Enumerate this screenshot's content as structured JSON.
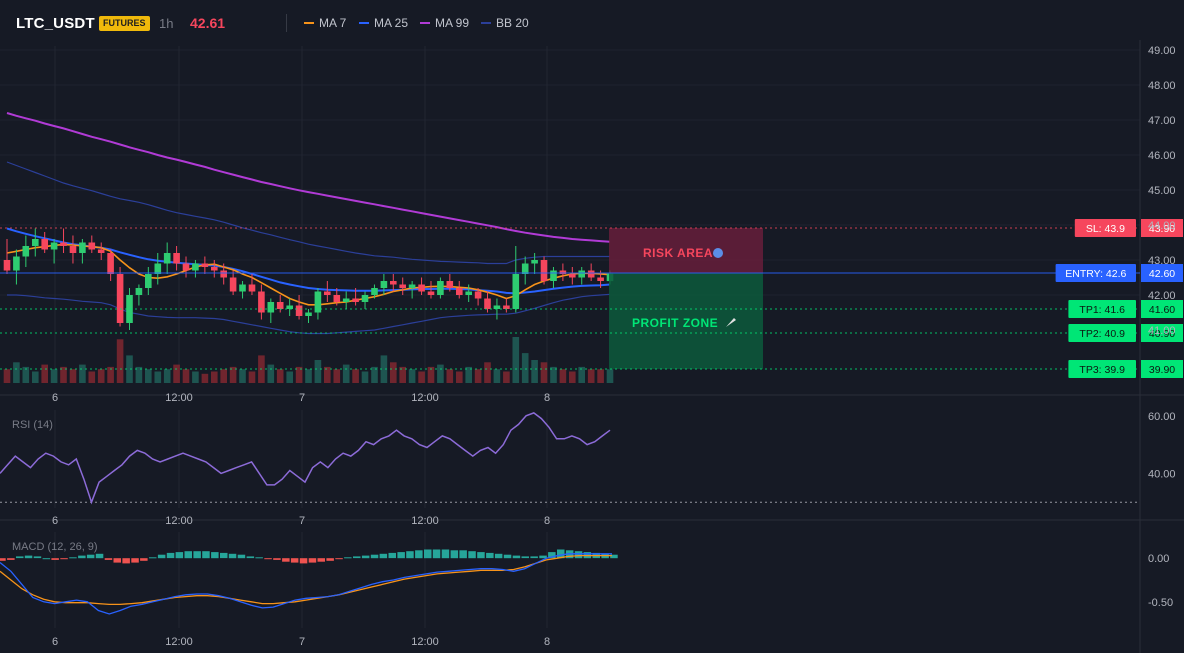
{
  "header": {
    "symbol": "LTC_USDT",
    "badge": "FUTURES",
    "timeframe": "1h",
    "last_price": "42.61",
    "indicators": [
      {
        "label": "MA 7",
        "color": "#f7931a"
      },
      {
        "label": "MA 25",
        "color": "#2962ff"
      },
      {
        "label": "MA 99",
        "color": "#b13bd6"
      },
      {
        "label": "BB 20",
        "color": "#2b3f99"
      }
    ]
  },
  "colors": {
    "up": "#26a69a",
    "up_bright": "#2ecc71",
    "down": "#f6465d",
    "ma7": "#f7931a",
    "ma25": "#2962ff",
    "ma99": "#b13bd6",
    "bb": "#2b3f99",
    "rsi": "#8c6bd8",
    "macd_line": "#2962ff",
    "signal_line": "#f7931a"
  },
  "x_axis_labels": [
    "6",
    "12:00",
    "7",
    "12:00",
    "8"
  ],
  "chart_data": [
    {
      "type": "candlestick",
      "title": "LTC_USDT",
      "ylim": [
        41.4,
        49.2
      ],
      "y_ticks": [
        "49.00",
        "48.00",
        "47.00",
        "46.00",
        "45.00",
        "44.00",
        "43.00",
        "42.00",
        "41.00"
      ],
      "ohlc": [
        [
          43.0,
          43.6,
          42.6,
          42.7
        ],
        [
          42.7,
          43.3,
          42.3,
          43.1
        ],
        [
          43.1,
          43.7,
          42.8,
          43.4
        ],
        [
          43.4,
          43.9,
          43.1,
          43.6
        ],
        [
          43.6,
          43.8,
          43.2,
          43.3
        ],
        [
          43.3,
          43.6,
          42.9,
          43.5
        ],
        [
          43.5,
          43.9,
          43.2,
          43.4
        ],
        [
          43.4,
          43.7,
          42.9,
          43.2
        ],
        [
          43.2,
          43.6,
          42.9,
          43.5
        ],
        [
          43.5,
          43.7,
          43.2,
          43.3
        ],
        [
          43.3,
          43.5,
          43.0,
          43.2
        ],
        [
          43.2,
          43.3,
          42.4,
          42.6
        ],
        [
          42.6,
          42.8,
          41.1,
          41.2
        ],
        [
          41.2,
          42.2,
          41.0,
          42.0
        ],
        [
          42.0,
          42.3,
          41.7,
          42.2
        ],
        [
          42.2,
          42.8,
          42.0,
          42.6
        ],
        [
          42.6,
          43.2,
          42.3,
          42.9
        ],
        [
          42.9,
          43.5,
          42.6,
          43.2
        ],
        [
          43.2,
          43.4,
          42.7,
          42.9
        ],
        [
          42.9,
          43.1,
          42.5,
          42.7
        ],
        [
          42.7,
          43.0,
          42.5,
          42.9
        ],
        [
          42.9,
          43.1,
          42.6,
          42.8
        ],
        [
          42.8,
          43.0,
          42.5,
          42.7
        ],
        [
          42.7,
          42.9,
          42.3,
          42.5
        ],
        [
          42.5,
          42.7,
          42.0,
          42.1
        ],
        [
          42.1,
          42.4,
          41.9,
          42.3
        ],
        [
          42.3,
          42.6,
          42.0,
          42.1
        ],
        [
          42.1,
          42.3,
          41.3,
          41.5
        ],
        [
          41.5,
          41.9,
          41.2,
          41.8
        ],
        [
          41.8,
          42.0,
          41.5,
          41.6
        ],
        [
          41.6,
          41.9,
          41.4,
          41.7
        ],
        [
          41.7,
          42.0,
          41.3,
          41.4
        ],
        [
          41.4,
          41.6,
          41.2,
          41.5
        ],
        [
          41.5,
          42.2,
          41.3,
          42.1
        ],
        [
          42.1,
          42.4,
          41.8,
          42.0
        ],
        [
          42.0,
          42.2,
          41.7,
          41.8
        ],
        [
          41.8,
          42.1,
          41.6,
          41.9
        ],
        [
          41.9,
          42.2,
          41.7,
          41.8
        ],
        [
          41.8,
          42.1,
          41.6,
          42.0
        ],
        [
          42.0,
          42.3,
          41.9,
          42.2
        ],
        [
          42.2,
          42.6,
          42.0,
          42.4
        ],
        [
          42.4,
          42.6,
          42.1,
          42.3
        ],
        [
          42.3,
          42.5,
          42.0,
          42.2
        ],
        [
          42.2,
          42.4,
          41.9,
          42.3
        ],
        [
          42.3,
          42.5,
          42.0,
          42.1
        ],
        [
          42.1,
          42.4,
          41.9,
          42.0
        ],
        [
          42.0,
          42.5,
          41.9,
          42.4
        ],
        [
          42.4,
          42.6,
          42.1,
          42.2
        ],
        [
          42.2,
          42.4,
          41.9,
          42.0
        ],
        [
          42.0,
          42.3,
          41.8,
          42.1
        ],
        [
          42.1,
          42.2,
          41.7,
          41.9
        ],
        [
          41.9,
          42.1,
          41.5,
          41.6
        ],
        [
          41.6,
          41.9,
          41.3,
          41.7
        ],
        [
          41.7,
          41.9,
          41.5,
          41.6
        ],
        [
          41.6,
          43.4,
          41.5,
          42.6
        ],
        [
          42.6,
          43.1,
          42.3,
          42.9
        ],
        [
          42.9,
          43.2,
          42.6,
          43.0
        ],
        [
          43.0,
          43.1,
          42.3,
          42.4
        ],
        [
          42.4,
          42.8,
          42.2,
          42.7
        ],
        [
          42.7,
          42.9,
          42.4,
          42.6
        ],
        [
          42.6,
          42.8,
          42.3,
          42.5
        ],
        [
          42.5,
          42.8,
          42.3,
          42.7
        ],
        [
          42.7,
          42.9,
          42.4,
          42.5
        ],
        [
          42.5,
          42.7,
          42.2,
          42.4
        ],
        [
          42.4,
          42.7,
          42.3,
          42.61
        ]
      ],
      "volume": [
        0.3,
        0.45,
        0.35,
        0.25,
        0.4,
        0.3,
        0.35,
        0.3,
        0.4,
        0.25,
        0.3,
        0.35,
        0.95,
        0.6,
        0.35,
        0.3,
        0.25,
        0.3,
        0.4,
        0.3,
        0.25,
        0.2,
        0.25,
        0.3,
        0.35,
        0.3,
        0.25,
        0.6,
        0.4,
        0.3,
        0.25,
        0.35,
        0.3,
        0.5,
        0.35,
        0.3,
        0.4,
        0.3,
        0.25,
        0.35,
        0.6,
        0.45,
        0.35,
        0.3,
        0.25,
        0.35,
        0.4,
        0.3,
        0.25,
        0.35,
        0.3,
        0.45,
        0.3,
        0.25,
        1.0,
        0.65,
        0.5,
        0.45,
        0.35,
        0.3,
        0.25,
        0.35,
        0.3,
        0.3,
        0.3
      ],
      "ma7": [
        43.2,
        43.25,
        43.3,
        43.35,
        43.38,
        43.42,
        43.44,
        43.43,
        43.4,
        43.38,
        43.35,
        43.25,
        43.0,
        42.78,
        42.6,
        42.5,
        42.48,
        42.52,
        42.6,
        42.7,
        42.8,
        42.86,
        42.88,
        42.8,
        42.72,
        42.6,
        42.5,
        42.35,
        42.2,
        42.05,
        41.9,
        41.8,
        41.72,
        41.72,
        41.75,
        41.78,
        41.8,
        41.85,
        41.9,
        41.95,
        42.02,
        42.1,
        42.15,
        42.2,
        42.22,
        42.24,
        42.25,
        42.24,
        42.22,
        42.2,
        42.15,
        42.08,
        42.0,
        41.9,
        41.98,
        42.15,
        42.3,
        42.4,
        42.48,
        42.55,
        42.6,
        42.62,
        42.62,
        42.6,
        42.58
      ],
      "ma25": [
        43.9,
        43.82,
        43.75,
        43.68,
        43.62,
        43.56,
        43.5,
        43.45,
        43.42,
        43.38,
        43.35,
        43.3,
        43.22,
        43.15,
        43.08,
        43.02,
        42.98,
        42.95,
        42.92,
        42.9,
        42.88,
        42.86,
        42.84,
        42.8,
        42.75,
        42.68,
        42.6,
        42.52,
        42.44,
        42.36,
        42.3,
        42.25,
        42.2,
        42.17,
        42.15,
        42.14,
        42.13,
        42.12,
        42.12,
        42.12,
        42.13,
        42.14,
        42.15,
        42.16,
        42.17,
        42.17,
        42.18,
        42.18,
        42.17,
        42.16,
        42.14,
        42.12,
        42.1,
        42.06,
        42.05,
        42.07,
        42.1,
        42.14,
        42.18,
        42.21,
        42.24,
        42.26,
        42.27,
        42.28,
        42.3
      ],
      "ma99": [
        47.2,
        47.12,
        47.05,
        46.98,
        46.9,
        46.83,
        46.76,
        46.68,
        46.6,
        46.52,
        46.45,
        46.38,
        46.3,
        46.22,
        46.15,
        46.08,
        46.0,
        45.93,
        45.87,
        45.8,
        45.73,
        45.66,
        45.58,
        45.51,
        45.44,
        45.37,
        45.3,
        45.23,
        45.17,
        45.11,
        45.05,
        44.99,
        44.94,
        44.89,
        44.84,
        44.79,
        44.74,
        44.69,
        44.64,
        44.59,
        44.54,
        44.49,
        44.44,
        44.39,
        44.34,
        44.29,
        44.24,
        44.19,
        44.14,
        44.09,
        44.04,
        43.99,
        43.94,
        43.88,
        43.83,
        43.78,
        43.74,
        43.7,
        43.66,
        43.63,
        43.6,
        43.58,
        43.56,
        43.54,
        43.52
      ],
      "bb_upper": [
        45.8,
        45.7,
        45.6,
        45.5,
        45.4,
        45.3,
        45.2,
        45.12,
        45.05,
        44.98,
        44.9,
        44.82,
        44.75,
        44.7,
        44.65,
        44.58,
        44.5,
        44.42,
        44.35,
        44.3,
        44.25,
        44.2,
        44.15,
        44.08,
        44.0,
        43.92,
        43.85,
        43.78,
        43.72,
        43.65,
        43.58,
        43.52,
        43.45,
        43.4,
        43.35,
        43.3,
        43.25,
        43.2,
        43.16,
        43.12,
        43.1,
        43.08,
        43.05,
        43.02,
        43.0,
        42.98,
        42.96,
        42.95,
        42.94,
        42.93,
        42.92,
        42.9,
        42.9,
        42.9,
        43.0,
        43.05,
        43.08,
        43.1,
        43.1,
        43.1,
        43.1,
        43.1,
        43.1,
        43.1,
        43.1
      ],
      "bb_lower": [
        42.0,
        42.0,
        41.98,
        41.95,
        41.92,
        41.9,
        41.88,
        41.85,
        41.82,
        41.8,
        41.78,
        41.72,
        41.6,
        41.5,
        41.45,
        41.4,
        41.38,
        41.36,
        41.35,
        41.35,
        41.35,
        41.34,
        41.33,
        41.3,
        41.25,
        41.2,
        41.15,
        41.1,
        41.05,
        41.0,
        40.95,
        40.92,
        40.9,
        40.9,
        40.9,
        40.92,
        40.94,
        40.96,
        40.98,
        41.0,
        41.05,
        41.1,
        41.15,
        41.2,
        41.25,
        41.3,
        41.35,
        41.38,
        41.4,
        41.42,
        41.43,
        41.44,
        41.45,
        41.45,
        41.48,
        41.55,
        41.62,
        41.7,
        41.78,
        41.85,
        41.9,
        41.95,
        41.98,
        42.0,
        42.02
      ],
      "levels": [
        {
          "key": "sl",
          "price": 43.9,
          "chip": "SL: 43.9",
          "tick": "43.90",
          "color": "#f6465d",
          "style": "dotted"
        },
        {
          "key": "entry",
          "price": 42.6,
          "chip": "ENTRY: 42.6",
          "tick": "42.60",
          "color": "#2962ff",
          "style": "solid"
        },
        {
          "key": "tp1",
          "price": 41.6,
          "chip": "TP1: 41.6",
          "tick": "41.60",
          "color": "#00e676",
          "style": "dotted"
        },
        {
          "key": "tp2",
          "price": 40.9,
          "chip": "TP2: 40.9",
          "tick": "40.90",
          "color": "#00e676",
          "style": "dotted"
        },
        {
          "key": "tp3",
          "price": 39.9,
          "chip": "TP3: 39.9",
          "tick": "39.90",
          "color": "#00e676",
          "style": "dotted"
        }
      ],
      "zones": {
        "risk_label": "RISK AREA",
        "profit_label": "PROFIT ZONE"
      }
    },
    {
      "type": "line",
      "title": "RSI (14)",
      "ylim": [
        28,
        62
      ],
      "y_ticks": [
        "60.00",
        "40.00"
      ],
      "oversold_level": 30,
      "values": [
        40,
        43,
        46,
        44,
        42,
        45,
        47,
        46,
        44,
        43,
        45,
        38,
        30,
        37,
        39,
        41,
        43,
        46,
        48,
        47,
        45,
        44,
        45,
        46,
        47,
        46,
        45,
        44,
        42,
        40,
        41,
        42,
        43,
        44,
        40,
        36,
        36,
        38,
        41,
        39,
        37,
        42,
        44,
        42,
        45,
        47,
        46,
        48,
        51,
        50,
        52,
        53,
        55,
        53,
        52,
        50,
        49,
        51,
        53,
        52,
        50,
        48,
        46,
        48,
        49,
        47,
        50,
        55,
        57,
        60,
        61,
        59,
        56,
        52,
        52,
        53,
        52,
        50,
        51,
        53,
        55
      ],
      "color": "#8c6bd8"
    },
    {
      "type": "bar",
      "title": "MACD (12, 26, 9)",
      "ylim": [
        -0.8,
        0.3
      ],
      "y_ticks": [
        "0.00",
        "-0.50"
      ],
      "histogram": [
        -0.03,
        -0.02,
        0.02,
        0.03,
        0.02,
        0.0,
        -0.02,
        -0.01,
        0.01,
        0.03,
        0.04,
        0.05,
        -0.02,
        -0.05,
        -0.06,
        -0.05,
        -0.03,
        0.01,
        0.04,
        0.06,
        0.07,
        0.08,
        0.08,
        0.08,
        0.07,
        0.06,
        0.05,
        0.04,
        0.02,
        0.01,
        -0.01,
        -0.02,
        -0.04,
        -0.05,
        -0.06,
        -0.05,
        -0.04,
        -0.03,
        -0.01,
        0.01,
        0.02,
        0.03,
        0.04,
        0.05,
        0.06,
        0.07,
        0.08,
        0.09,
        0.1,
        0.1,
        0.1,
        0.09,
        0.09,
        0.08,
        0.07,
        0.06,
        0.05,
        0.04,
        0.03,
        0.02,
        0.02,
        0.03,
        0.07,
        0.1,
        0.09,
        0.08,
        0.07,
        0.06,
        0.05,
        0.04
      ],
      "macd": [
        -0.05,
        -0.15,
        -0.3,
        -0.45,
        -0.5,
        -0.52,
        -0.5,
        -0.48,
        -0.5,
        -0.6,
        -0.64,
        -0.6,
        -0.55,
        -0.53,
        -0.5,
        -0.47,
        -0.44,
        -0.42,
        -0.41,
        -0.41,
        -0.43,
        -0.46,
        -0.5,
        -0.54,
        -0.57,
        -0.56,
        -0.52,
        -0.48,
        -0.46,
        -0.45,
        -0.44,
        -0.42,
        -0.38,
        -0.34,
        -0.3,
        -0.27,
        -0.25,
        -0.22,
        -0.2,
        -0.18,
        -0.16,
        -0.15,
        -0.14,
        -0.13,
        -0.12,
        -0.12,
        -0.13,
        -0.15,
        -0.12,
        -0.06,
        0.0,
        0.03,
        0.05,
        0.05,
        0.05,
        0.05,
        0.05
      ],
      "signal": [
        -0.15,
        -0.25,
        -0.35,
        -0.42,
        -0.47,
        -0.5,
        -0.51,
        -0.51,
        -0.51,
        -0.52,
        -0.53,
        -0.53,
        -0.52,
        -0.51,
        -0.49,
        -0.47,
        -0.45,
        -0.44,
        -0.43,
        -0.43,
        -0.44,
        -0.46,
        -0.48,
        -0.5,
        -0.52,
        -0.52,
        -0.51,
        -0.5,
        -0.48,
        -0.46,
        -0.44,
        -0.42,
        -0.39,
        -0.36,
        -0.33,
        -0.3,
        -0.27,
        -0.24,
        -0.22,
        -0.2,
        -0.18,
        -0.17,
        -0.16,
        -0.15,
        -0.14,
        -0.14,
        -0.14,
        -0.13,
        -0.1,
        -0.06,
        -0.02,
        0.0,
        0.02,
        0.03,
        0.03,
        0.03,
        0.03
      ],
      "colors": {
        "hist_up": "#26a69a",
        "hist_down": "#ef5350"
      }
    }
  ]
}
